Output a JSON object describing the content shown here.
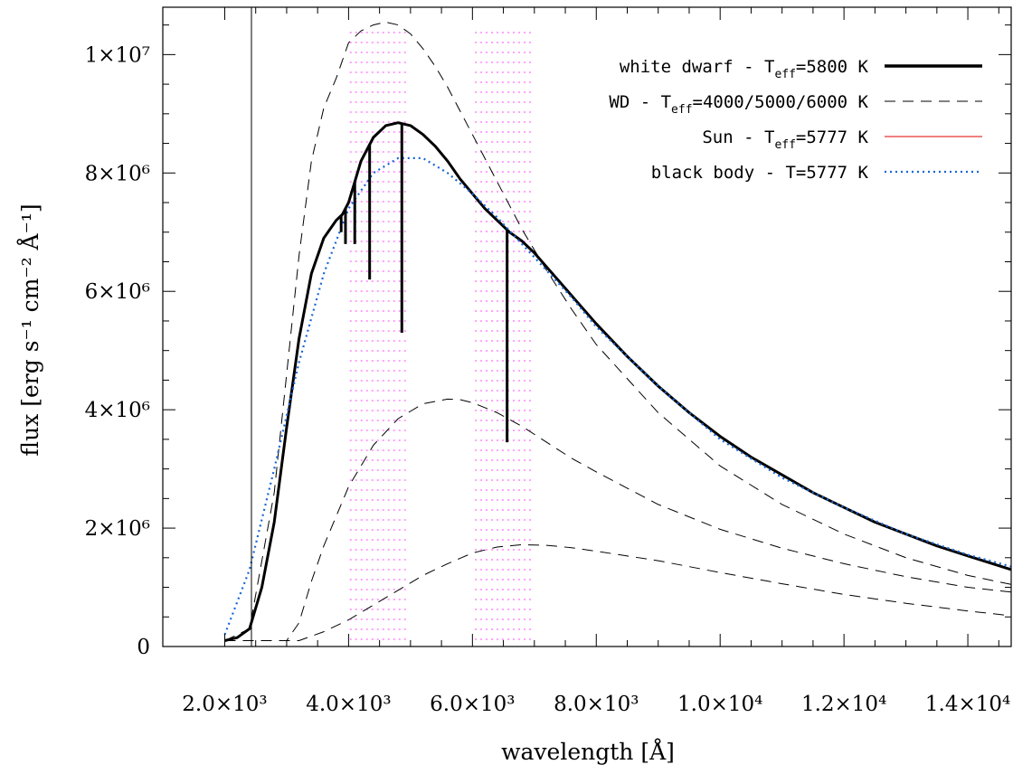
{
  "chart_data": {
    "type": "line",
    "xlabel": "wavelength [Å]",
    "ylabel": "flux [erg s⁻¹ cm⁻² Å⁻¹]",
    "xlim": [
      1000,
      14700
    ],
    "ylim": [
      0,
      10800000
    ],
    "x_ticks": [
      {
        "value": 2000,
        "label": "2.0×10³"
      },
      {
        "value": 4000,
        "label": "4.0×10³"
      },
      {
        "value": 6000,
        "label": "6.0×10³"
      },
      {
        "value": 8000,
        "label": "8.0×10³"
      },
      {
        "value": 10000,
        "label": "1.0×10⁴"
      },
      {
        "value": 12000,
        "label": "1.2×10⁴"
      },
      {
        "value": 14000,
        "label": "1.4×10⁴"
      }
    ],
    "y_ticks": [
      {
        "value": 0,
        "label": "0"
      },
      {
        "value": 2000000,
        "label": "2×10⁶"
      },
      {
        "value": 4000000,
        "label": "4×10⁶"
      },
      {
        "value": 6000000,
        "label": "6×10⁶"
      },
      {
        "value": 8000000,
        "label": "8×10⁶"
      },
      {
        "value": 10000000,
        "label": "1×10⁷"
      }
    ],
    "legend": [
      {
        "label": "white dwarf - T",
        "sub": "eff",
        "suffix": "=5800 K",
        "color": "#000000",
        "style": "solid",
        "width": 3.5
      },
      {
        "label": "WD - T",
        "sub": "eff",
        "suffix": "=4000/5000/6000 K",
        "color": "#000000",
        "style": "dashed",
        "width": 1
      },
      {
        "label": "Sun - T",
        "sub": "eff",
        "suffix": "=5777 K",
        "color": "#e00000",
        "style": "solid",
        "width": 1
      },
      {
        "label": "black body - T=5777 K",
        "sub": "",
        "suffix": "",
        "color": "#1565d8",
        "style": "dotted",
        "width": 2.2
      }
    ],
    "shaded_bands": [
      {
        "x0": 4020,
        "x1": 4930,
        "color": "#ff44ff"
      },
      {
        "x0": 6040,
        "x1": 6980,
        "color": "#ff44ff"
      }
    ],
    "series": [
      {
        "name": "white dwarf - Teff=5800 K",
        "color": "#000000",
        "style": "solid",
        "width": 3,
        "x": [
          2000,
          2200,
          2400,
          2600,
          2800,
          3000,
          3200,
          3400,
          3600,
          3800,
          3900,
          4000,
          4200,
          4400,
          4600,
          4800,
          5000,
          5200,
          5400,
          5600,
          5800,
          6000,
          6200,
          6400,
          6600,
          6800,
          7000,
          7500,
          8000,
          8500,
          9000,
          9500,
          10000,
          10500,
          11000,
          11500,
          12000,
          12500,
          13000,
          13500,
          14000,
          14700
        ],
        "y": [
          100000,
          150000,
          300000,
          1000000,
          2100000,
          3700000,
          5200000,
          6300000,
          6900000,
          7200000,
          7300000,
          7500000,
          8200000,
          8600000,
          8800000,
          8850000,
          8800000,
          8650000,
          8450000,
          8200000,
          7900000,
          7650000,
          7400000,
          7200000,
          7000000,
          6850000,
          6650000,
          6050000,
          5450000,
          4900000,
          4400000,
          3950000,
          3550000,
          3200000,
          2900000,
          2600000,
          2350000,
          2100000,
          1900000,
          1700000,
          1530000,
          1300000
        ]
      },
      {
        "name": "WD - Teff=6000 K",
        "color": "#000000",
        "style": "dashed",
        "width": 1,
        "x": [
          2000,
          2400,
          2800,
          3000,
          3200,
          3400,
          3600,
          3800,
          4000,
          4200,
          4400,
          4600,
          4800,
          5000,
          5200,
          5400,
          5600,
          5800,
          6000,
          6400,
          6800,
          7200,
          7600,
          8000,
          9000,
          10000,
          11000,
          12000,
          13000,
          14000,
          14700
        ],
        "y": [
          100000,
          300000,
          2600000,
          4600000,
          6600000,
          8200000,
          9100000,
          9600000,
          10200000,
          10400000,
          10500000,
          10550000,
          10500000,
          10350000,
          10100000,
          9800000,
          9450000,
          9050000,
          8650000,
          7850000,
          7050000,
          6350000,
          5700000,
          5100000,
          3950000,
          3050000,
          2400000,
          1900000,
          1500000,
          1200000,
          1050000
        ]
      },
      {
        "name": "WD - Teff=5000 K",
        "color": "#000000",
        "style": "dashed",
        "width": 1,
        "x": [
          2000,
          2400,
          2800,
          3000,
          3200,
          3400,
          3600,
          3800,
          4000,
          4400,
          4800,
          5200,
          5600,
          5800,
          6000,
          6400,
          6800,
          7200,
          7600,
          8000,
          9000,
          10000,
          11000,
          12000,
          13000,
          14000,
          14700
        ],
        "y": [
          100000,
          100000,
          100000,
          100000,
          400000,
          1100000,
          1700000,
          2200000,
          2700000,
          3400000,
          3850000,
          4100000,
          4180000,
          4170000,
          4120000,
          3950000,
          3720000,
          3450000,
          3180000,
          2950000,
          2400000,
          1980000,
          1660000,
          1400000,
          1180000,
          1000000,
          920000
        ]
      },
      {
        "name": "WD - Teff=4000 K",
        "color": "#000000",
        "style": "dashed",
        "width": 1,
        "x": [
          2000,
          2600,
          3000,
          3200,
          3600,
          4000,
          4400,
          4800,
          5200,
          5600,
          6000,
          6400,
          6800,
          7200,
          7600,
          8000,
          9000,
          10000,
          11000,
          12000,
          13000,
          14000,
          14700
        ],
        "y": [
          100000,
          100000,
          100000,
          100000,
          250000,
          450000,
          700000,
          950000,
          1200000,
          1400000,
          1580000,
          1680000,
          1720000,
          1710000,
          1670000,
          1610000,
          1450000,
          1250000,
          1060000,
          880000,
          730000,
          600000,
          520000
        ]
      },
      {
        "name": "black body - T=5777 K",
        "color": "#1565d8",
        "style": "dotted",
        "width": 2.2,
        "x": [
          2000,
          2400,
          2800,
          3200,
          3600,
          4000,
          4400,
          4800,
          5200,
          5600,
          6000,
          6400,
          6800,
          7200,
          7600,
          8000,
          9000,
          10000,
          11000,
          12000,
          13000,
          14000,
          14700
        ],
        "y": [
          200000,
          1300000,
          3000000,
          4800000,
          6300000,
          7400000,
          8000000,
          8250000,
          8250000,
          8000000,
          7650000,
          7250000,
          6800000,
          6350000,
          5900000,
          5400000,
          4400000,
          3500000,
          2850000,
          2350000,
          1900000,
          1550000,
          1350000
        ]
      }
    ],
    "absorption_lines": [
      {
        "x": 3880,
        "y_min": 7000000
      },
      {
        "x": 3950,
        "y_min": 6800000
      },
      {
        "x": 4100,
        "y_min": 6800000
      },
      {
        "x": 4340,
        "y_min": 6200000
      },
      {
        "x": 4860,
        "y_min": 5300000
      },
      {
        "x": 6560,
        "y_min": 3450000
      }
    ]
  }
}
